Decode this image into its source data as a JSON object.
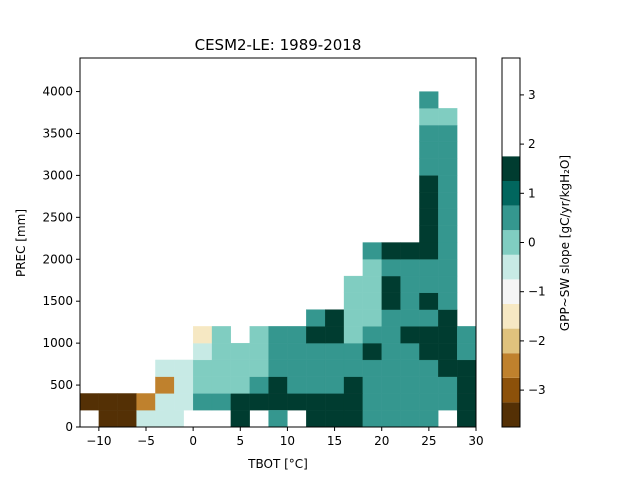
{
  "chart_data": {
    "type": "heatmap",
    "title": "CESM2-LE: 1989-2018",
    "xlabel": "TBOT [°C]",
    "ylabel": "PREC [mm]",
    "xlim": [
      -12,
      30
    ],
    "ylim": [
      0,
      4400
    ],
    "x_ticks": [
      -10,
      -5,
      0,
      5,
      10,
      15,
      20,
      25,
      30
    ],
    "y_ticks": [
      0,
      500,
      1000,
      1500,
      2000,
      2500,
      3000,
      3500,
      4000
    ],
    "bin_width_x": 2,
    "bin_height_y": 200,
    "cells": [
      [
        -10,
        200,
        -3.5
      ],
      [
        -8,
        200,
        -3.5
      ],
      [
        -8,
        400,
        -3.5
      ],
      [
        -6,
        200,
        -0.5
      ],
      [
        -4,
        200,
        -0.5
      ],
      [
        -12,
        400,
        -3.5
      ],
      [
        -10,
        400,
        -3.5
      ],
      [
        -6,
        400,
        -2.5
      ],
      [
        -4,
        400,
        -0.5
      ],
      [
        -2,
        400,
        -0.5
      ],
      [
        0,
        400,
        0.5
      ],
      [
        2,
        400,
        0.5
      ],
      [
        4,
        400,
        1.5
      ],
      [
        6,
        400,
        1.5
      ],
      [
        8,
        400,
        1.5
      ],
      [
        10,
        400,
        1.5
      ],
      [
        12,
        400,
        1.5
      ],
      [
        14,
        400,
        1.5
      ],
      [
        16,
        400,
        1.5
      ],
      [
        18,
        400,
        0.5
      ],
      [
        20,
        400,
        0.5
      ],
      [
        22,
        400,
        0.5
      ],
      [
        24,
        400,
        0.5
      ],
      [
        26,
        400,
        0.5
      ],
      [
        28,
        400,
        1.5
      ],
      [
        -4,
        600,
        -2.5
      ],
      [
        -2,
        600,
        -0.5
      ],
      [
        0,
        600,
        0
      ],
      [
        2,
        600,
        0
      ],
      [
        4,
        600,
        0
      ],
      [
        6,
        600,
        0.5
      ],
      [
        8,
        600,
        1.5
      ],
      [
        10,
        600,
        0.5
      ],
      [
        12,
        600,
        0.5
      ],
      [
        14,
        600,
        0.5
      ],
      [
        16,
        600,
        1.5
      ],
      [
        18,
        600,
        0.5
      ],
      [
        20,
        600,
        0.5
      ],
      [
        22,
        600,
        0.5
      ],
      [
        24,
        600,
        0.5
      ],
      [
        26,
        600,
        0.5
      ],
      [
        28,
        600,
        1.5
      ],
      [
        -3,
        200,
        -0.5
      ],
      [
        4,
        200,
        1.5
      ],
      [
        8,
        200,
        0.5
      ],
      [
        12,
        200,
        1.5
      ],
      [
        14,
        200,
        1.5
      ],
      [
        16,
        200,
        1.5
      ],
      [
        18,
        200,
        0.5
      ],
      [
        20,
        200,
        0.5
      ],
      [
        22,
        200,
        0.5
      ],
      [
        24,
        200,
        0.5
      ],
      [
        28,
        200,
        1.5
      ],
      [
        -4,
        800,
        -0.5
      ],
      [
        -2,
        800,
        -0.5
      ],
      [
        0,
        800,
        0
      ],
      [
        2,
        800,
        0
      ],
      [
        4,
        800,
        0
      ],
      [
        6,
        800,
        0
      ],
      [
        8,
        800,
        0.5
      ],
      [
        10,
        800,
        0.5
      ],
      [
        12,
        800,
        0.5
      ],
      [
        14,
        800,
        0.5
      ],
      [
        16,
        800,
        0.5
      ],
      [
        18,
        800,
        0.5
      ],
      [
        20,
        800,
        0.5
      ],
      [
        22,
        800,
        0.5
      ],
      [
        24,
        800,
        0.5
      ],
      [
        26,
        800,
        1.5
      ],
      [
        28,
        800,
        1.5
      ],
      [
        0,
        1000,
        -0.5
      ],
      [
        2,
        1000,
        0
      ],
      [
        4,
        1000,
        0
      ],
      [
        6,
        1000,
        0
      ],
      [
        8,
        1000,
        0.5
      ],
      [
        10,
        1000,
        0.5
      ],
      [
        12,
        1000,
        0.5
      ],
      [
        14,
        1000,
        0.5
      ],
      [
        16,
        1000,
        0.5
      ],
      [
        18,
        1000,
        1.5
      ],
      [
        20,
        1000,
        0.5
      ],
      [
        22,
        1000,
        0.5
      ],
      [
        24,
        1000,
        1.5
      ],
      [
        26,
        1000,
        2.5
      ],
      [
        28,
        1000,
        0.5
      ],
      [
        0,
        1200,
        -1.5
      ],
      [
        2,
        1200,
        0
      ],
      [
        6,
        1200,
        0
      ],
      [
        8,
        1200,
        0.5
      ],
      [
        10,
        1200,
        0.5
      ],
      [
        12,
        1200,
        1.5
      ],
      [
        14,
        1200,
        1.5
      ],
      [
        16,
        1200,
        0
      ],
      [
        18,
        1200,
        0.5
      ],
      [
        20,
        1200,
        0.5
      ],
      [
        22,
        1200,
        1.5
      ],
      [
        24,
        1200,
        2.5
      ],
      [
        26,
        1200,
        2.5
      ],
      [
        28,
        1200,
        0.5
      ],
      [
        12,
        1400,
        0.5
      ],
      [
        14,
        1400,
        1.5
      ],
      [
        16,
        1400,
        0
      ],
      [
        18,
        1400,
        0
      ],
      [
        20,
        1400,
        0.5
      ],
      [
        22,
        1400,
        0.5
      ],
      [
        24,
        1400,
        0.5
      ],
      [
        26,
        1400,
        1.5
      ],
      [
        16,
        1600,
        0
      ],
      [
        18,
        1600,
        0
      ],
      [
        20,
        1600,
        1.5
      ],
      [
        22,
        1600,
        0.5
      ],
      [
        24,
        1600,
        1.5
      ],
      [
        26,
        1600,
        0.5
      ],
      [
        16,
        1800,
        0
      ],
      [
        18,
        1800,
        0
      ],
      [
        20,
        1800,
        1.5
      ],
      [
        22,
        1800,
        0.5
      ],
      [
        24,
        1800,
        0.5
      ],
      [
        26,
        1800,
        0.5
      ],
      [
        18,
        2000,
        0
      ],
      [
        20,
        2000,
        0.5
      ],
      [
        22,
        2000,
        0.5
      ],
      [
        24,
        2000,
        0.5
      ],
      [
        26,
        2000,
        0.5
      ],
      [
        18,
        2200,
        0.5
      ],
      [
        20,
        2200,
        1.5
      ],
      [
        22,
        2200,
        1.5
      ],
      [
        24,
        2200,
        1.5
      ],
      [
        26,
        2200,
        0.5
      ],
      [
        24,
        2400,
        2.5
      ],
      [
        26,
        2400,
        0.5
      ],
      [
        24,
        2600,
        2.5
      ],
      [
        26,
        2600,
        0.5
      ],
      [
        24,
        2800,
        2.5
      ],
      [
        26,
        2800,
        0.5
      ],
      [
        24,
        3000,
        1.5
      ],
      [
        26,
        3000,
        0.5
      ],
      [
        24,
        3200,
        0.5
      ],
      [
        26,
        3200,
        0.5
      ],
      [
        24,
        3400,
        0.5
      ],
      [
        26,
        3400,
        0.5
      ],
      [
        24,
        3600,
        0.5
      ],
      [
        26,
        3600,
        0.5
      ],
      [
        24,
        3800,
        0
      ],
      [
        26,
        3800,
        0
      ],
      [
        24,
        4000,
        0.5
      ]
    ],
    "colorbar": {
      "label": "GPP~SW slope [gC/yr/kgH₂O]",
      "ticks": [
        -3,
        -2,
        -1,
        0,
        1,
        2,
        3
      ],
      "bounds": [
        -3.75,
        -3.25,
        -2.75,
        -2.25,
        -1.75,
        -1.25,
        -0.75,
        -0.25,
        0.25,
        0.75,
        1.25,
        1.75,
        2.25,
        2.75,
        3.25,
        3.75
      ],
      "colors": [
        "#543005",
        "#8c510a",
        "#bf812d",
        "#dfc27d",
        "#f6e8c3",
        "#f5f5f5",
        "#c7eae5",
        "#80cdc1",
        "#35978f",
        "#01665e",
        "#003c30"
      ]
    }
  }
}
